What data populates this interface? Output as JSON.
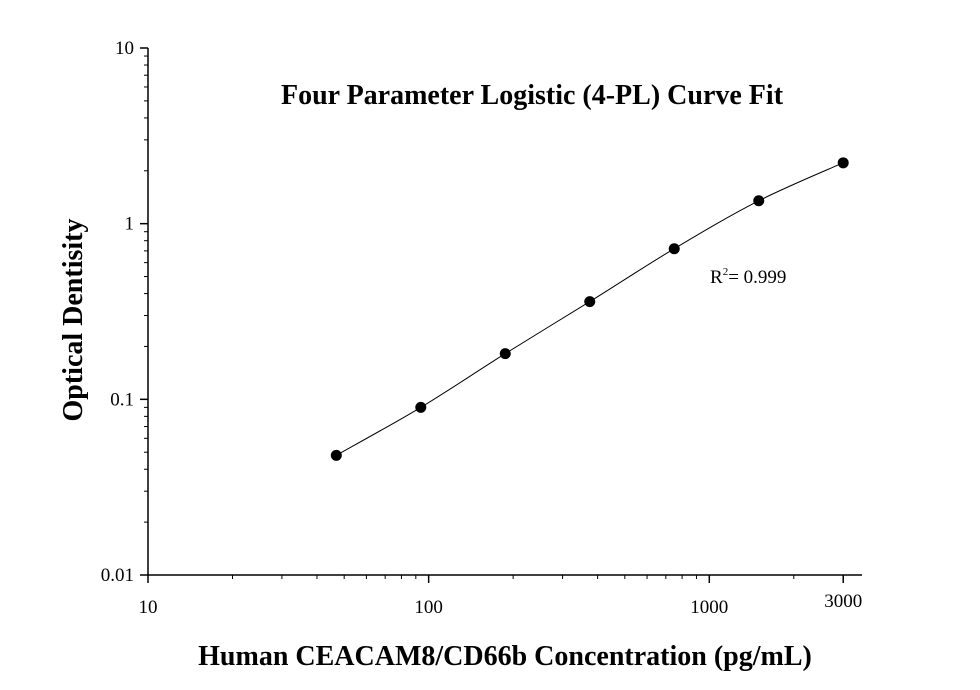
{
  "chart_data": {
    "type": "scatter",
    "title": "Four Parameter Logistic (4-PL) Curve Fit",
    "xlabel": "Human CEACAM8/CD66b Concentration (pg/mL)",
    "ylabel": "Optical Dentisity",
    "x_scale": "log",
    "y_scale": "log",
    "xlim": [
      10,
      3500
    ],
    "ylim": [
      0.01,
      10
    ],
    "x_ticks": [
      {
        "value": 10,
        "label": "10"
      },
      {
        "value": 100,
        "label": "100"
      },
      {
        "value": 1000,
        "label": "1000"
      },
      {
        "value": 3000,
        "label": "3000"
      }
    ],
    "y_ticks": [
      {
        "value": 0.01,
        "label": "0.01"
      },
      {
        "value": 0.1,
        "label": "0.1"
      },
      {
        "value": 1,
        "label": "1"
      },
      {
        "value": 10,
        "label": "10"
      }
    ],
    "points": [
      {
        "x": 46.875,
        "y": 0.048
      },
      {
        "x": 93.75,
        "y": 0.09
      },
      {
        "x": 187.5,
        "y": 0.182
      },
      {
        "x": 375,
        "y": 0.36
      },
      {
        "x": 750,
        "y": 0.72
      },
      {
        "x": 1500,
        "y": 1.35
      },
      {
        "x": 3000,
        "y": 2.22
      }
    ],
    "fit_curve": {
      "model": "4-PL",
      "xrange": [
        46.875,
        3000
      ]
    },
    "annotation": {
      "text": "R",
      "superscript": "2",
      "value_text": "= 0.999"
    },
    "grid": false,
    "legend": "none",
    "colors": {
      "points": "#000000",
      "curve": "#000000",
      "axes": "#000000"
    }
  }
}
